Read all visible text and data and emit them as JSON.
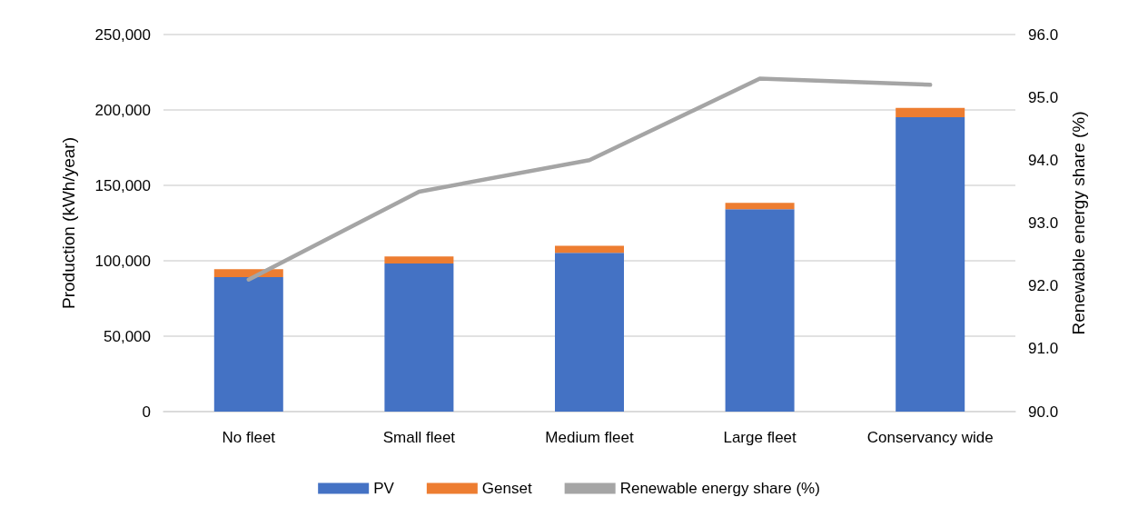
{
  "chart_data": {
    "type": "bar",
    "stacked": true,
    "categories": [
      "No fleet",
      "Small fleet",
      "Medium fleet",
      "Large fleet",
      "Conservancy wide"
    ],
    "series": [
      {
        "name": "PV",
        "color": "#4472c4",
        "values": [
          89200,
          98200,
          105200,
          134200,
          195200
        ]
      },
      {
        "name": "Genset",
        "color": "#ed7d31",
        "values": [
          5200,
          4600,
          4700,
          4200,
          6200
        ]
      },
      {
        "name": "Renewable energy share (%)",
        "type": "line",
        "axis": "y2",
        "color": "#a5a5a5",
        "marker": "none",
        "values": [
          92.1,
          93.5,
          94.0,
          95.3,
          95.2
        ]
      }
    ],
    "ylabel": "Production (kWh/year)",
    "y2label": "Renewable energy share (%)",
    "ylim": [
      0,
      250000
    ],
    "yticks": [
      0,
      {
        "value": 50000,
        "label": "50,000"
      },
      {
        "value": 100000,
        "label": "100,000"
      },
      {
        "value": 150000,
        "label": "150,000"
      },
      {
        "value": 200000,
        "label": "200,000"
      },
      {
        "value": 250000,
        "label": "250,000"
      }
    ],
    "y2lim": [
      90,
      96
    ],
    "y2ticks": [
      {
        "value": 90,
        "label": "90.0"
      },
      {
        "value": 91,
        "label": "91.0"
      },
      {
        "value": 92,
        "label": "92.0"
      },
      {
        "value": 93,
        "label": "93.0"
      },
      {
        "value": 94,
        "label": "94.0"
      },
      {
        "value": 95,
        "label": "95.0"
      },
      {
        "value": 96,
        "label": "96.0"
      }
    ],
    "grid": "y",
    "legend": "bottom"
  }
}
